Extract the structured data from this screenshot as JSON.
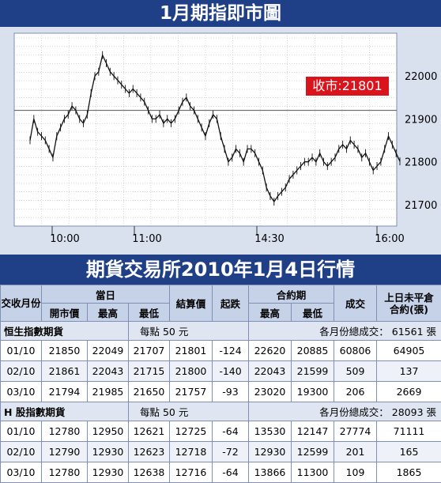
{
  "chart": {
    "title": "1月期指即市圖",
    "close_label": "收市:21801"
  },
  "chart_data": {
    "type": "line",
    "title": "1月期指即市圖",
    "annotation": "收市:21801",
    "x_labels": [
      "10:00",
      "11:00",
      "14:30",
      "16:00"
    ],
    "y_ticks": [
      21700,
      21800,
      21900,
      22000
    ],
    "ylim": [
      21650,
      22100
    ],
    "reference_line": 21920,
    "grid": true,
    "series": [
      {
        "values": [
          21850,
          21900,
          21870,
          21860,
          21850,
          21830,
          21810,
          21860,
          21880,
          21900,
          21910,
          21930,
          21920,
          21900,
          21890,
          21910,
          21960,
          22000,
          22010,
          22049,
          22030,
          22010,
          22000,
          21990,
          21980,
          21970,
          21960,
          21970,
          21960,
          21950,
          21940,
          21920,
          21900,
          21900,
          21910,
          21890,
          21900,
          21890,
          21900,
          21920,
          21940,
          21950,
          21930,
          21920,
          21900,
          21880,
          21860,
          21890,
          21910,
          21900,
          21860,
          21830,
          21800,
          21810,
          21830,
          21820,
          21800,
          21830,
          21830,
          21820,
          21800,
          21780,
          21740,
          21720,
          21707,
          21720,
          21730,
          21740,
          21760,
          21770,
          21780,
          21790,
          21800,
          21800,
          21810,
          21800,
          21820,
          21800,
          21790,
          21800,
          21810,
          21830,
          21840,
          21830,
          21850,
          21840,
          21830,
          21810,
          21820,
          21800,
          21780,
          21790,
          21800,
          21830,
          21860,
          21840,
          21820,
          21801
        ]
      }
    ]
  },
  "table": {
    "title": "期貨交易所2010年1月4日行情",
    "headers": {
      "month": "交收月份",
      "day": "當日",
      "open": "開市價",
      "high": "最高",
      "low": "最低",
      "settle": "結算價",
      "change": "起跌",
      "contract": "合約期",
      "c_high": "最高",
      "c_low": "最低",
      "volume": "成交",
      "oi": "上日未平倉合約(張)"
    },
    "groups": [
      {
        "name": "恒生指數期貨",
        "unit": "每點 50 元",
        "volume_text": "各月份總成交：  61561 張",
        "rows": [
          [
            "01/10",
            "21850",
            "22049",
            "21707",
            "21801",
            "-124",
            "22620",
            "20885",
            "60806",
            "64905"
          ],
          [
            "02/10",
            "21861",
            "22043",
            "21715",
            "21800",
            "-140",
            "22043",
            "21599",
            "509",
            "137"
          ],
          [
            "03/10",
            "21794",
            "21985",
            "21650",
            "21757",
            "-93",
            "23020",
            "19300",
            "206",
            "2669"
          ]
        ]
      },
      {
        "name": "H 股指數期貨",
        "unit": "每點 50 元",
        "volume_text": "各月份總成交：  28093 張",
        "rows": [
          [
            "01/10",
            "12780",
            "12950",
            "12621",
            "12725",
            "-64",
            "13530",
            "12147",
            "27774",
            "71111"
          ],
          [
            "02/10",
            "12790",
            "12930",
            "12623",
            "12718",
            "-72",
            "12930",
            "12599",
            "201",
            "165"
          ],
          [
            "03/10",
            "12780",
            "12930",
            "12638",
            "12716",
            "-64",
            "13866",
            "11300",
            "109",
            "1865"
          ]
        ]
      }
    ]
  }
}
